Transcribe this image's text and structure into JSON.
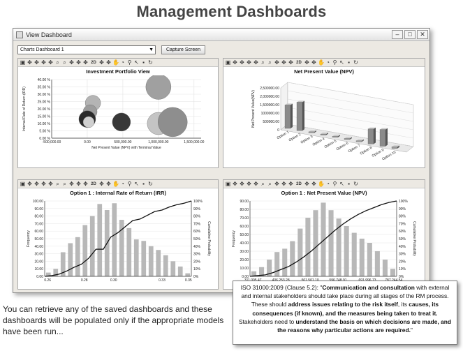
{
  "page_title": "Management Dashboards",
  "window": {
    "title": "View Dashboard",
    "dashboard_selected": "Charts Dashboard 1",
    "capture_button": "Capture Screen"
  },
  "toolbar": {
    "icons": [
      "settings-icon",
      "move-icon",
      "move-icon",
      "move-icon",
      "move-icon",
      "zoom-icon",
      "zoom-icon",
      "move-icon",
      "move-icon",
      "move-icon",
      "2d-icon",
      "move-icon",
      "move-icon",
      "grab-icon",
      "pie-icon",
      "pin-icon",
      "pointer-icon",
      "image-icon",
      "refresh-icon"
    ],
    "label_2d": "2D"
  },
  "charts": {
    "portfolio": {
      "title": "Investment Portfolio View",
      "xlabel": "Net Present Value (NPV) with Terminal Value",
      "ylabel": "Internal Rate of Return (IRR)",
      "xticks": [
        "-500,000.00",
        "0.00",
        "500,000.00",
        "1,000,000.00",
        "1,500,000.00"
      ],
      "yticks": [
        "0.00 %",
        "5.00 %",
        "10.00 %",
        "15.00 %",
        "20.00 %",
        "25.00 %",
        "30.00 %",
        "35.00 %",
        "40.00 %"
      ]
    },
    "npv": {
      "title": "Net Present Value (NPV)",
      "ylabel": "Net Present Value(NPV)",
      "yticks": [
        "0",
        "500000.00",
        "1000000.00",
        "1,500000.00",
        "2,000000.00",
        "2,500000.00"
      ],
      "categories": [
        "Option 1",
        "Option 2",
        "Option 3",
        "Option 4",
        "Option 5",
        "Option 6",
        "Option 7",
        "Option 8",
        "Option 9",
        "Option 10"
      ]
    },
    "irr_hist": {
      "title": "Option 1 : Internal Rate of Return (IRR)",
      "ylabel": "Frequency",
      "y2label": "Cumulative Probability",
      "yticks": [
        "0.00",
        "10.00",
        "20.00",
        "30.00",
        "40.00",
        "50.00",
        "60.00",
        "70.00",
        "80.00",
        "90.00",
        "100.00"
      ],
      "y2ticks": [
        "0%",
        "10%",
        "20%",
        "30%",
        "40%",
        "50%",
        "60%",
        "70%",
        "80%",
        "90%",
        "100%"
      ],
      "xticks": [
        "0.26",
        "0.28",
        "0.30",
        "0.33",
        "0.35"
      ]
    },
    "npv_hist": {
      "title": "Option 1 : Net Present Value (NPV)",
      "ylabel": "Frequency",
      "y2label": "Cumulative Probability",
      "yticks": [
        "0.00",
        "10.00",
        "20.00",
        "30.00",
        "40.00",
        "50.00",
        "60.00",
        "70.00",
        "80.00",
        "90.00"
      ],
      "y2ticks": [
        "0%",
        "10%",
        "20%",
        "30%",
        "40%",
        "50%",
        "60%",
        "70%",
        "80%",
        "90%",
        "100%"
      ],
      "xticks": [
        "311,005.47",
        "406,253.28",
        "501,501.10",
        "596,748.91",
        "691,996.73",
        "787,244.54"
      ]
    }
  },
  "chart_data": [
    {
      "type": "scatter",
      "title": "Investment Portfolio View",
      "xlabel": "Net Present Value (NPV) with Terminal Value",
      "ylabel": "Internal Rate of Return (IRR)",
      "xlim": [
        -500000,
        1600000
      ],
      "ylim": [
        0,
        40
      ],
      "points": [
        {
          "x": 1000000,
          "y": 35,
          "size": 18
        },
        {
          "x": 80000,
          "y": 24,
          "size": 11
        },
        {
          "x": 40000,
          "y": 18,
          "size": 10
        },
        {
          "x": 0,
          "y": 13,
          "size": 12
        },
        {
          "x": 20000,
          "y": 11,
          "size": 8
        },
        {
          "x": 480000,
          "y": 11,
          "size": 13
        },
        {
          "x": 1000000,
          "y": 10,
          "size": 16
        },
        {
          "x": 1200000,
          "y": 11,
          "size": 21
        }
      ]
    },
    {
      "type": "bar",
      "title": "Net Present Value (NPV)",
      "categories": [
        "Option 1",
        "Option 2",
        "Option 3",
        "Option 4",
        "Option 5",
        "Option 6",
        "Option 7",
        "Option 8",
        "Option 9",
        "Option 10"
      ],
      "values": [
        1400000,
        1700000,
        50000,
        30000,
        40000,
        30000,
        60000,
        900000,
        1000000,
        100000
      ]
    },
    {
      "type": "bar",
      "title": "Option 1 : Internal Rate of Return (IRR)",
      "ylim": [
        0,
        100
      ],
      "values": [
        5,
        10,
        32,
        44,
        52,
        68,
        80,
        96,
        88,
        97,
        75,
        64,
        49,
        47,
        40,
        35,
        28,
        20,
        13,
        4
      ],
      "cumulative": [
        0.01,
        0.03,
        0.07,
        0.12,
        0.16,
        0.24,
        0.36,
        0.36,
        0.52,
        0.58,
        0.66,
        0.74,
        0.76,
        0.81,
        0.86,
        0.88,
        0.92,
        0.95,
        0.97,
        1.0
      ]
    },
    {
      "type": "bar",
      "title": "Option 1 : Net Present Value (NPV)",
      "ylim": [
        0,
        90
      ],
      "values": [
        6,
        11,
        20,
        29,
        33,
        42,
        57,
        70,
        79,
        88,
        79,
        69,
        60,
        52,
        45,
        40,
        30,
        20,
        9
      ],
      "cumulative": [
        0.01,
        0.02,
        0.05,
        0.09,
        0.13,
        0.19,
        0.26,
        0.34,
        0.43,
        0.52,
        0.61,
        0.69,
        0.76,
        0.82,
        0.87,
        0.91,
        0.95,
        0.98,
        1.0
      ]
    }
  ],
  "caption": "You can retrieve any of the saved dashboards and these dashboards will be populated only if the appropriate models have been run...",
  "iso_note": {
    "p1": "ISO 31000:2009 (Clause 5.2): \"",
    "b1": "Communication and consultation",
    "p2": " with external and internal stakeholders should take place during all stages of the RM process. These should ",
    "b2": "address issues relating to the risk itself",
    "p3": ", its ",
    "b3": "causes, its consequences (if known), and the measures being taken to treat it.",
    "p4": " Stakeholders need to ",
    "b4": "understand the basis on which decisions are made, and the reasons why particular actions are required.",
    "p5": "\""
  }
}
